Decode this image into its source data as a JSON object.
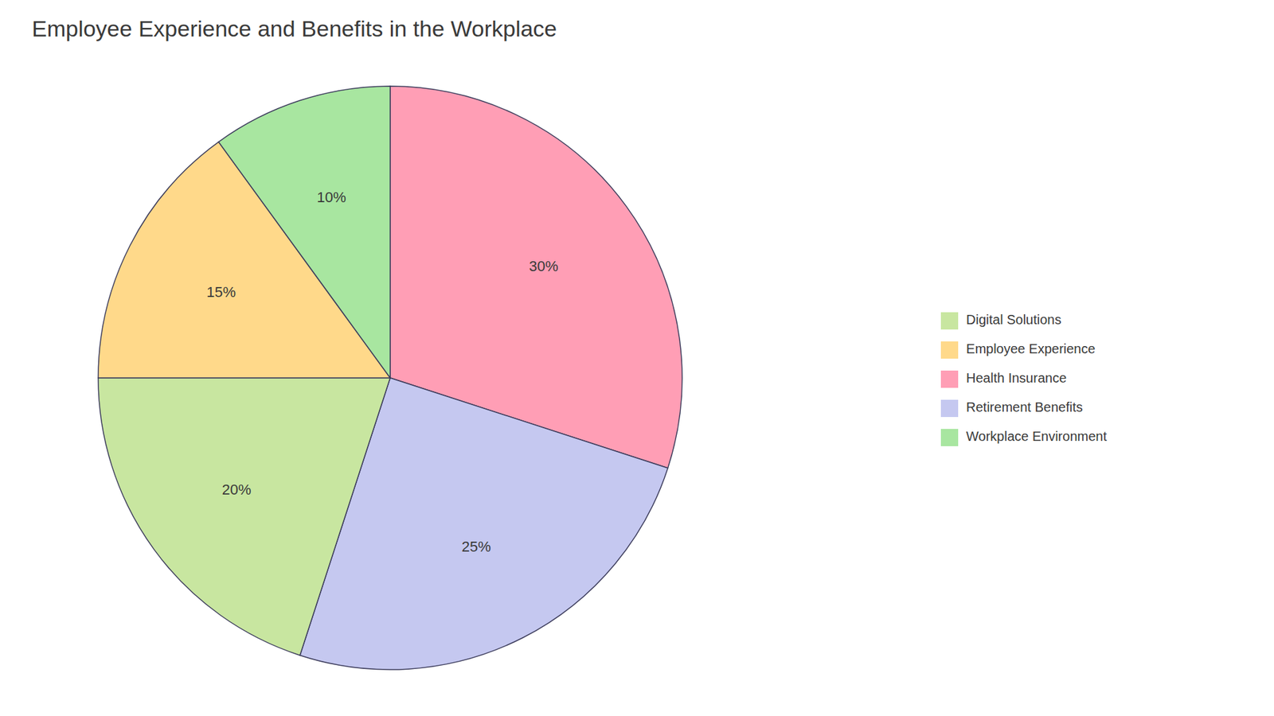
{
  "chart_data": {
    "type": "pie",
    "title": "Employee Experience and Benefits in the Workplace",
    "categories": [
      "Health Insurance",
      "Retirement Benefits",
      "Digital Solutions",
      "Employee Experience",
      "Workplace Environment"
    ],
    "values": [
      30,
      25,
      20,
      15,
      10
    ],
    "value_labels": [
      "30%",
      "25%",
      "20%",
      "15%",
      "10%"
    ],
    "colors": [
      "#FF9EB5",
      "#C5C8F0",
      "#C8E6A0",
      "#FFD98A",
      "#A8E6A0"
    ],
    "data_labels": true,
    "legend": "right"
  }
}
